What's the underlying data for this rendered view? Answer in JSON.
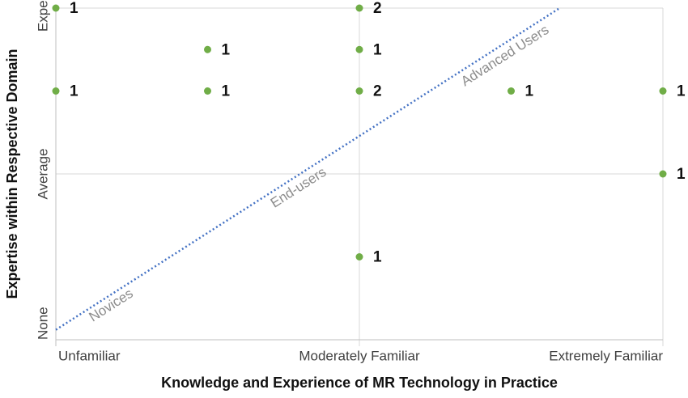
{
  "chart_data": {
    "type": "scatter",
    "x_label": "Knowledge and Experience of MR Technology in Practice",
    "y_label": "Expertise within Respective Domain",
    "xlim": [
      0,
      4
    ],
    "ylim": [
      0,
      4
    ],
    "xticks": [
      {
        "value": 0,
        "label": "Unfamiliar"
      },
      {
        "value": 2,
        "label": "Moderately Familiar"
      },
      {
        "value": 4,
        "label": "Extremely Familiar"
      }
    ],
    "yticks": [
      {
        "value": 0,
        "label": "None"
      },
      {
        "value": 2,
        "label": "Average"
      },
      {
        "value": 4,
        "label": "Expert"
      }
    ],
    "grid": true,
    "color": "#70ad47",
    "x": [
      0,
      2,
      1,
      2,
      0,
      1,
      2,
      3,
      4,
      4,
      2
    ],
    "y": [
      4,
      4,
      3.5,
      3.5,
      3,
      3,
      3,
      3,
      3,
      2,
      1
    ],
    "counts": [
      1,
      2,
      1,
      1,
      1,
      1,
      2,
      1,
      1,
      1,
      1
    ],
    "trendline": {
      "x": [
        0,
        3.32
      ],
      "y": [
        0.12,
        4
      ],
      "color": "#4472c4"
    },
    "annotations": [
      "Novices",
      "End-users",
      "Advanced Users"
    ]
  }
}
